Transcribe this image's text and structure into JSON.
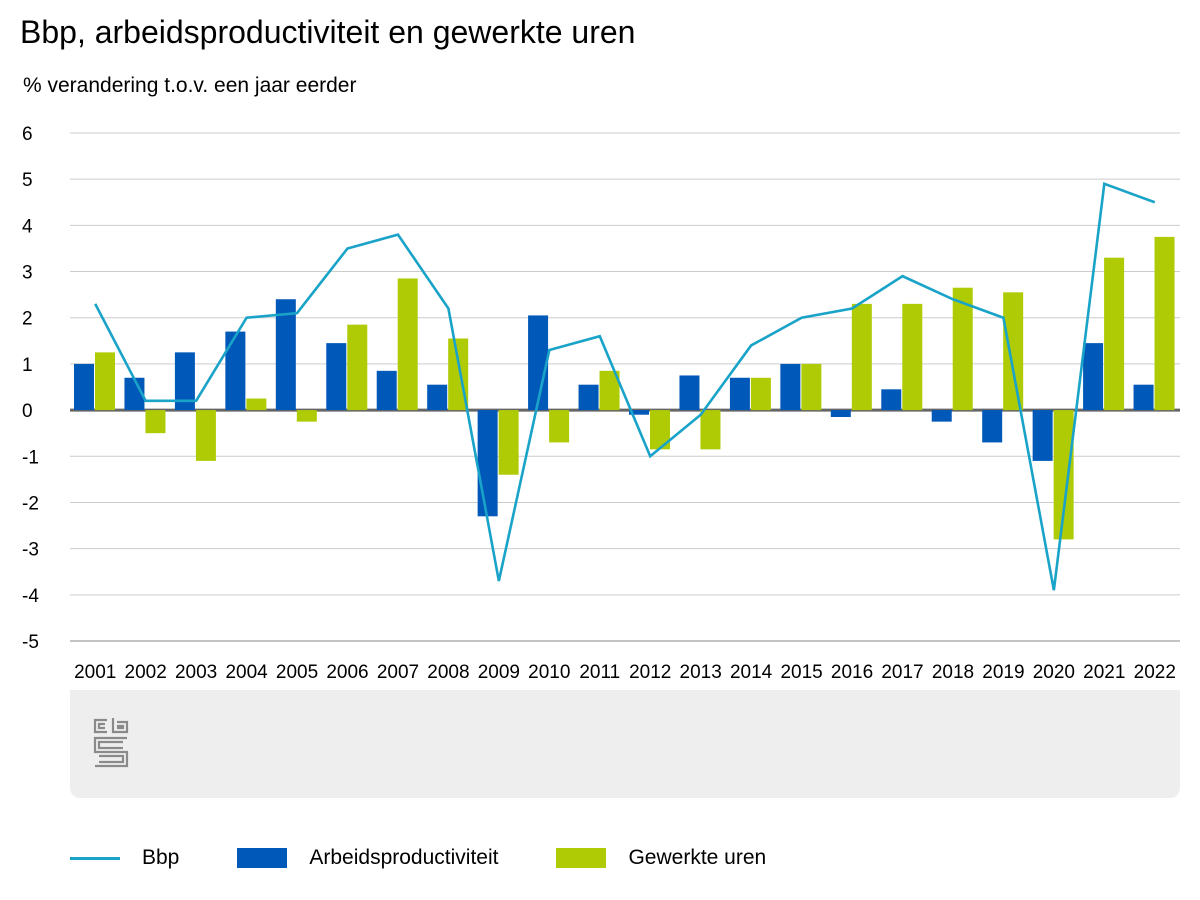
{
  "colors": {
    "bbp": "#1aa3c8",
    "arbeidsproductiviteit": "#0058b8",
    "gewerkte_uren": "#afcb05",
    "grid": "#cccccc",
    "zero": "#666666",
    "footer_bg": "#eeeeee",
    "logo": "#8a8a8a"
  },
  "icons": {
    "logo": "cbs-logo-icon"
  },
  "chart_data": {
    "type": "bar",
    "title": "Bbp, arbeidsproductiviteit en gewerkte uren",
    "subtitle": "% verandering t.o.v. een jaar eerder",
    "xlabel": "",
    "ylabel": "% verandering t.o.v. een jaar eerder",
    "ylim": [
      -5,
      6
    ],
    "yticks": [
      6,
      5,
      4,
      3,
      2,
      1,
      0,
      -1,
      -2,
      -3,
      -4,
      -5
    ],
    "grid": true,
    "legend_position": "bottom",
    "categories": [
      "2001",
      "2002",
      "2003",
      "2004",
      "2005",
      "2006",
      "2007",
      "2008",
      "2009",
      "2010",
      "2011",
      "2012",
      "2013",
      "2014",
      "2015",
      "2016",
      "2017",
      "2018",
      "2019",
      "2020",
      "2021",
      "2022"
    ],
    "series": [
      {
        "name": "Arbeidsproductiviteit",
        "type": "bar",
        "values": [
          1.0,
          0.7,
          1.25,
          1.7,
          2.4,
          1.45,
          0.85,
          0.55,
          -2.3,
          2.05,
          0.55,
          -0.1,
          0.75,
          0.7,
          1.0,
          -0.15,
          0.45,
          -0.25,
          -0.7,
          -1.1,
          1.45,
          0.55
        ]
      },
      {
        "name": "Gewerkte uren",
        "type": "bar",
        "values": [
          1.25,
          -0.5,
          -1.1,
          0.25,
          -0.25,
          1.85,
          2.85,
          1.55,
          -1.4,
          -0.7,
          0.85,
          -0.85,
          -0.85,
          0.7,
          1.0,
          2.3,
          2.3,
          2.65,
          2.55,
          -2.8,
          3.3,
          3.75
        ]
      },
      {
        "name": "Bbp",
        "type": "line",
        "values": [
          2.3,
          0.2,
          0.2,
          2.0,
          2.1,
          3.5,
          3.8,
          2.2,
          -3.7,
          1.3,
          1.6,
          -1.0,
          -0.1,
          1.4,
          2.0,
          2.2,
          2.9,
          2.4,
          2.0,
          -3.9,
          4.9,
          4.5
        ]
      }
    ]
  },
  "legend": {
    "items": [
      {
        "label": "Bbp"
      },
      {
        "label": "Arbeidsproductiviteit"
      },
      {
        "label": "Gewerkte uren"
      }
    ]
  }
}
